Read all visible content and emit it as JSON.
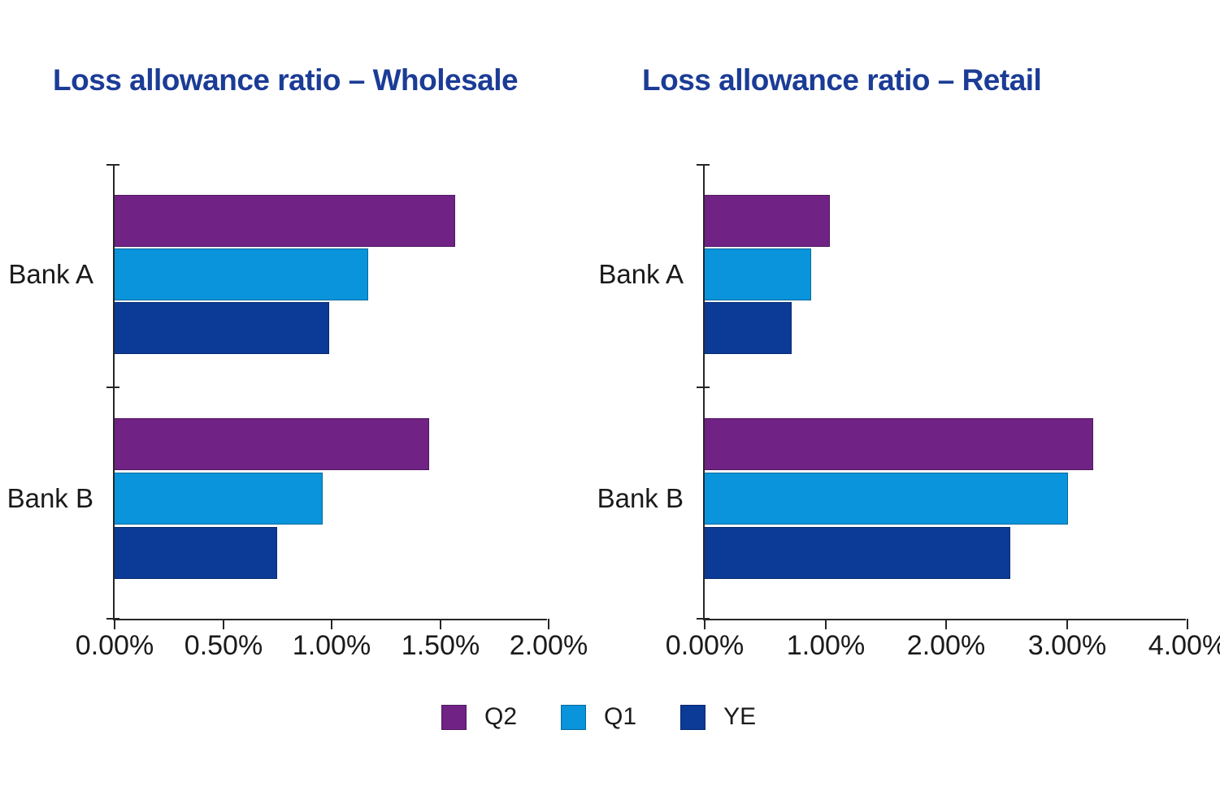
{
  "page": {
    "background_color": "#ffffff",
    "title_color": "#1b3c96",
    "axis_color": "#262626",
    "label_color": "#1a1a1a"
  },
  "legend": {
    "position": "bottom-center",
    "items": [
      {
        "label": "Q2",
        "color": "#702384"
      },
      {
        "label": "Q1",
        "color": "#0994db"
      },
      {
        "label": "YE",
        "color": "#0c3a97"
      }
    ]
  },
  "chart_data": [
    {
      "type": "bar",
      "orientation": "horizontal",
      "title": "Loss allowance ratio – Wholesale",
      "categories": [
        "Bank A",
        "Bank B"
      ],
      "series": [
        {
          "name": "Q2",
          "color": "#702384",
          "values": [
            1.57,
            1.45
          ]
        },
        {
          "name": "Q1",
          "color": "#0994db",
          "values": [
            1.17,
            0.96
          ]
        },
        {
          "name": "YE",
          "color": "#0c3a97",
          "values": [
            0.99,
            0.75
          ]
        }
      ],
      "unit": "%",
      "xlim": [
        0,
        2
      ],
      "x_ticks": [
        "0.00%",
        "0.50%",
        "1.00%",
        "1.50%",
        "2.00%"
      ],
      "grid": false,
      "legend_position": "shared-bottom"
    },
    {
      "type": "bar",
      "orientation": "horizontal",
      "title": "Loss allowance ratio – Retail",
      "categories": [
        "Bank A",
        "Bank B"
      ],
      "series": [
        {
          "name": "Q2",
          "color": "#702384",
          "values": [
            1.04,
            3.22
          ]
        },
        {
          "name": "Q1",
          "color": "#0994db",
          "values": [
            0.88,
            3.01
          ]
        },
        {
          "name": "YE",
          "color": "#0c3a97",
          "values": [
            0.72,
            2.53
          ]
        }
      ],
      "unit": "%",
      "xlim": [
        0,
        4
      ],
      "x_ticks": [
        "0.00%",
        "1.00%",
        "2.00%",
        "3.00%",
        "4.00%"
      ],
      "grid": false,
      "legend_position": "shared-bottom"
    }
  ]
}
